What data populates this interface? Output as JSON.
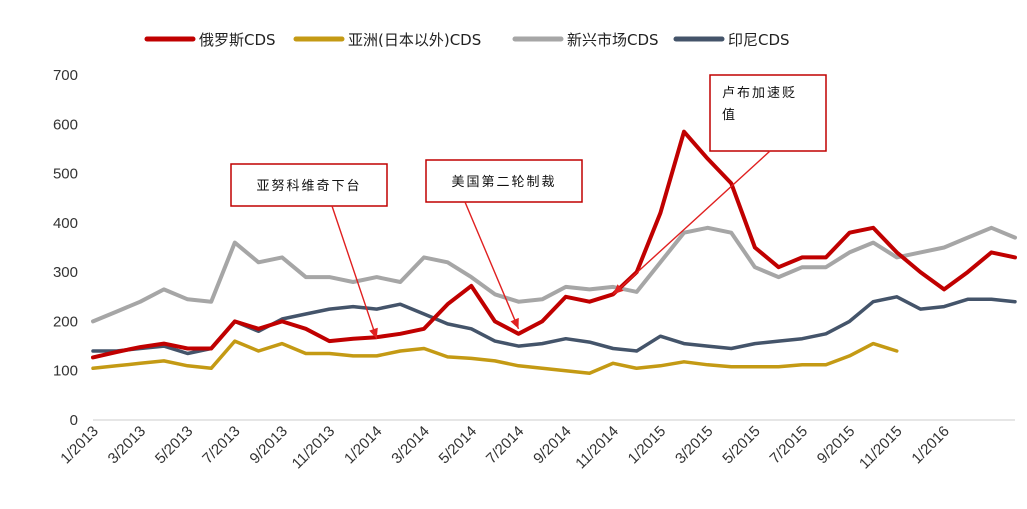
{
  "chart_data": {
    "type": "line",
    "title": "",
    "xlabel": "",
    "ylabel": "",
    "ylim": [
      0,
      700
    ],
    "yticks": [
      0,
      100,
      200,
      300,
      400,
      500,
      600,
      700
    ],
    "xlim": [
      "2013-01",
      "2016-04"
    ],
    "xtick_labels": [
      "1/2013",
      "3/2013",
      "5/2013",
      "7/2013",
      "9/2013",
      "11/2013",
      "1/2014",
      "3/2014",
      "5/2014",
      "7/2014",
      "9/2014",
      "11/2014",
      "1/2015",
      "3/2015",
      "5/2015",
      "7/2015",
      "9/2015",
      "11/2015",
      "1/2016"
    ],
    "grid": false,
    "legend_position": "top",
    "series": [
      {
        "name": "俄罗斯CDS",
        "color": "#c00000",
        "x": [
          "2013-01",
          "2013-02",
          "2013-03",
          "2013-04",
          "2013-05",
          "2013-06",
          "2013-07",
          "2013-08",
          "2013-09",
          "2013-10",
          "2013-11",
          "2013-12",
          "2014-01",
          "2014-02",
          "2014-03",
          "2014-04",
          "2014-05",
          "2014-06",
          "2014-07",
          "2014-08",
          "2014-09",
          "2014-10",
          "2014-11",
          "2014-12",
          "2015-01",
          "2015-02",
          "2015-03",
          "2015-04",
          "2015-05",
          "2015-06",
          "2015-07",
          "2015-08",
          "2015-09",
          "2015-10",
          "2015-11",
          "2015-12",
          "2016-01",
          "2016-02",
          "2016-03",
          "2016-04"
        ],
        "values": [
          127,
          138,
          148,
          155,
          145,
          145,
          200,
          185,
          200,
          185,
          160,
          165,
          168,
          175,
          185,
          235,
          272,
          200,
          175,
          200,
          250,
          240,
          255,
          300,
          420,
          585,
          530,
          480,
          350,
          310,
          330,
          330,
          380,
          390,
          340,
          300,
          265,
          300,
          340,
          330
        ]
      },
      {
        "name": "亚洲(日本以外)CDS",
        "color": "#c49a14",
        "x": [
          "2013-01",
          "2013-02",
          "2013-03",
          "2013-04",
          "2013-05",
          "2013-06",
          "2013-07",
          "2013-08",
          "2013-09",
          "2013-10",
          "2013-11",
          "2013-12",
          "2014-01",
          "2014-02",
          "2014-03",
          "2014-04",
          "2014-05",
          "2014-06",
          "2014-07",
          "2014-08",
          "2014-09",
          "2014-10",
          "2014-11",
          "2014-12",
          "2015-01",
          "2015-02",
          "2015-03",
          "2015-04",
          "2015-05",
          "2015-06",
          "2015-07",
          "2015-08",
          "2015-09",
          "2015-10",
          "2015-11"
        ],
        "values": [
          105,
          110,
          115,
          120,
          110,
          105,
          160,
          140,
          155,
          135,
          135,
          130,
          130,
          140,
          145,
          128,
          125,
          120,
          110,
          105,
          100,
          95,
          115,
          105,
          110,
          118,
          112,
          108,
          108,
          108,
          112,
          112,
          130,
          155,
          140
        ]
      },
      {
        "name": "新兴市场CDS",
        "color": "#a6a6a6",
        "x": [
          "2013-01",
          "2013-02",
          "2013-03",
          "2013-04",
          "2013-05",
          "2013-06",
          "2013-07",
          "2013-08",
          "2013-09",
          "2013-10",
          "2013-11",
          "2013-12",
          "2014-01",
          "2014-02",
          "2014-03",
          "2014-04",
          "2014-05",
          "2014-06",
          "2014-07",
          "2014-08",
          "2014-09",
          "2014-10",
          "2014-11",
          "2014-12",
          "2015-01",
          "2015-02",
          "2015-03",
          "2015-04",
          "2015-05",
          "2015-06",
          "2015-07",
          "2015-08",
          "2015-09",
          "2015-10",
          "2015-11",
          "2015-12",
          "2016-01",
          "2016-02",
          "2016-03",
          "2016-04"
        ],
        "values": [
          200,
          220,
          240,
          265,
          245,
          240,
          360,
          320,
          330,
          290,
          290,
          280,
          290,
          280,
          330,
          320,
          290,
          255,
          240,
          245,
          270,
          265,
          270,
          260,
          320,
          380,
          390,
          380,
          310,
          290,
          310,
          310,
          340,
          360,
          330,
          340,
          350,
          370,
          390,
          370
        ]
      },
      {
        "name": "印尼CDS",
        "color": "#44546a",
        "x": [
          "2013-01",
          "2013-02",
          "2013-03",
          "2013-04",
          "2013-05",
          "2013-06",
          "2013-07",
          "2013-08",
          "2013-09",
          "2013-10",
          "2013-11",
          "2013-12",
          "2014-01",
          "2014-02",
          "2014-03",
          "2014-04",
          "2014-05",
          "2014-06",
          "2014-07",
          "2014-08",
          "2014-09",
          "2014-10",
          "2014-11",
          "2014-12",
          "2015-01",
          "2015-02",
          "2015-03",
          "2015-04",
          "2015-05",
          "2015-06",
          "2015-07",
          "2015-08",
          "2015-09",
          "2015-10",
          "2015-11",
          "2015-12",
          "2016-01",
          "2016-02",
          "2016-03",
          "2016-04"
        ],
        "values": [
          140,
          140,
          145,
          150,
          135,
          145,
          200,
          180,
          205,
          215,
          225,
          230,
          225,
          235,
          215,
          195,
          185,
          160,
          150,
          155,
          165,
          158,
          145,
          140,
          170,
          155,
          150,
          145,
          155,
          160,
          165,
          175,
          200,
          240,
          250,
          225,
          230,
          245,
          245,
          240
        ]
      }
    ],
    "annotations": [
      {
        "text": "亚努科维奇下台",
        "x": "2014-01",
        "y": 165
      },
      {
        "text": "美国第二轮制裁",
        "x": "2014-07",
        "y": 185
      },
      {
        "text": "卢布加速贬值",
        "x": "2014-11",
        "y": 255
      }
    ]
  }
}
